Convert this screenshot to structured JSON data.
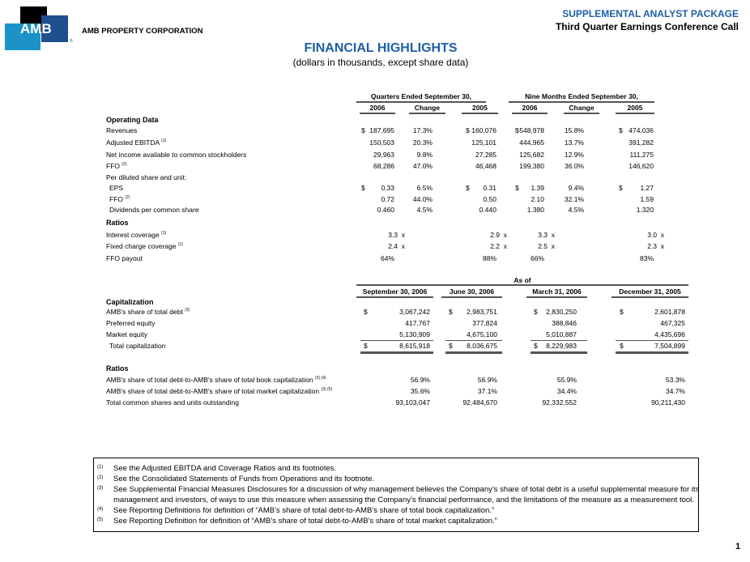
{
  "logo": {
    "mark": "AMB",
    "company": "AMB PROPERTY CORPORATION",
    "colors": {
      "black": "#000000",
      "light_blue": "#1b93c9",
      "dark_blue": "#1e4f8e"
    }
  },
  "header": {
    "package": "SUPPLEMENTAL ANALYST PACKAGE",
    "call": "Third Quarter Earnings Conference Call",
    "title": "FINANCIAL HIGHLIGHTS",
    "subtitle": "(dollars in thousands, except share data)",
    "accent": "#1f5fa8"
  },
  "table1": {
    "group_headers": [
      "Quarters Ended September 30,",
      "Nine Months Ended September 30,"
    ],
    "columns": [
      "2006",
      "Change",
      "2005",
      "2006",
      "Change",
      "2005"
    ],
    "rows": [
      {
        "label": "Operating Data",
        "section": true
      },
      {
        "label": "Revenues",
        "values": [
          "$",
          "187,695",
          "17.3%",
          "$",
          "160,076",
          "$",
          "548,978",
          "15.8%",
          "$",
          "474,036"
        ]
      },
      {
        "label": "Adjusted EBITDA",
        "sup": "(1)",
        "values": [
          "",
          "150,503",
          "20.3%",
          "",
          "125,101",
          "",
          "444,965",
          "13.7%",
          "",
          "391,282"
        ]
      },
      {
        "label": "Net income available to common stockholders",
        "values": [
          "",
          "29,963",
          "9.8%",
          "",
          "27,285",
          "",
          "125,682",
          "12.9%",
          "",
          "111,275"
        ]
      },
      {
        "label": "FFO",
        "sup": "(2)",
        "values": [
          "",
          "68,286",
          "47.0%",
          "",
          "46,468",
          "",
          "199,380",
          "36.0%",
          "",
          "146,620"
        ]
      },
      {
        "label": "Per diluted share and unit:",
        "values": []
      },
      {
        "label": "EPS",
        "indent": true,
        "values": [
          "$",
          "0.33",
          "6.5%",
          "$",
          "0.31",
          "$",
          "1.39",
          "9.4%",
          "$",
          "1.27"
        ]
      },
      {
        "label": "FFO",
        "sup": "(2)",
        "indent": true,
        "values": [
          "",
          "0.72",
          "44.0%",
          "",
          "0.50",
          "",
          "2.10",
          "32.1%",
          "",
          "1.59"
        ]
      },
      {
        "label": "Dividends per common share",
        "indent": true,
        "values": [
          "",
          "0.460",
          "4.5%",
          "",
          "0.440",
          "",
          "1.380",
          "4.5%",
          "",
          "1.320"
        ]
      },
      {
        "label": "Ratios",
        "section": true
      },
      {
        "label": "Interest coverage",
        "sup": "(1)",
        "values": [
          "",
          "3.3  x",
          "",
          "",
          "2.9  x",
          "",
          "3.3  x",
          "",
          "",
          "3.0  x"
        ]
      },
      {
        "label": "Fixed charge coverage",
        "sup": "(1)",
        "values": [
          "",
          "2.4  x",
          "",
          "",
          "2.2  x",
          "",
          "2.5  x",
          "",
          "",
          "2.3  x"
        ]
      },
      {
        "label": "FFO payout",
        "values": [
          "",
          "64%",
          "",
          "",
          "88%",
          "",
          "66%",
          "",
          "",
          "83%"
        ]
      }
    ]
  },
  "table2": {
    "group_header": "As of",
    "columns": [
      "September 30, 2006",
      "June 30, 2006",
      "March 31, 2006",
      "December 31, 2005"
    ],
    "rows": [
      {
        "label": "Capitalization",
        "section": true
      },
      {
        "label": "AMB's share of total debt",
        "sup": "(3)",
        "values": [
          "$",
          "3,067,242",
          "$",
          "2,983,751",
          "$",
          "2,830,250",
          "$",
          "2,601,878"
        ]
      },
      {
        "label": "Preferred equity",
        "values": [
          "",
          "417,767",
          "",
          "377,824",
          "",
          "388,846",
          "",
          "467,325"
        ]
      },
      {
        "label": "Market equity",
        "values": [
          "",
          "5,130,909",
          "",
          "4,675,100",
          "",
          "5,010,887",
          "",
          "4,435,696"
        ]
      },
      {
        "label": "Total capitalization",
        "indent": true,
        "values": [
          "$",
          "8,615,918",
          "$",
          "8,036,675",
          "$",
          "8,229,983",
          "$",
          "7,504,899"
        ]
      },
      {
        "label": "Ratios",
        "section": true
      },
      {
        "label": "AMB's share of total debt-to-AMB's share of total book capitalization",
        "sup": "(3) (4)",
        "values": [
          "",
          "56.9%",
          "",
          "56.9%",
          "",
          "55.9%",
          "",
          "53.3%"
        ]
      },
      {
        "label": "AMB's share of total debt-to-AMB's share of total market capitalization",
        "sup": "(3) (5)",
        "values": [
          "",
          "35.6%",
          "",
          "37.1%",
          "",
          "34.4%",
          "",
          "34.7%"
        ]
      },
      {
        "label": "Total common shares and units outstanding",
        "values": [
          "",
          "93,103,047",
          "",
          "92,484,670",
          "",
          "92,332,552",
          "",
          "90,211,430"
        ]
      }
    ]
  },
  "footnotes": [
    {
      "num": "(1)",
      "text": "See the Adjusted EBITDA and Coverage Ratios and its footnotes."
    },
    {
      "num": "(2)",
      "text": "See the Consolidated Statements of Funds from Operations and its footnote."
    },
    {
      "num": "(3)",
      "text": "See Supplemental Financial Measures Disclosures for a discussion of why management believes the Company’s share of total debt is a useful supplemental measure for its"
    },
    {
      "num": "",
      "text": "management and investors, of ways to use this measure when assessing the Company’s financial performance, and the limitations of the measure as a measurement tool."
    },
    {
      "num": "(4)",
      "text": "See Reporting Definitions for definition of “AMB’s share of total debt-to-AMB’s share of total book capitalization.”"
    },
    {
      "num": "(5)",
      "text": "See Reporting Definition for definition of “AMB’s share of total debt-to-AMB’s share of total market capitalization.”"
    }
  ],
  "page_number": "1"
}
